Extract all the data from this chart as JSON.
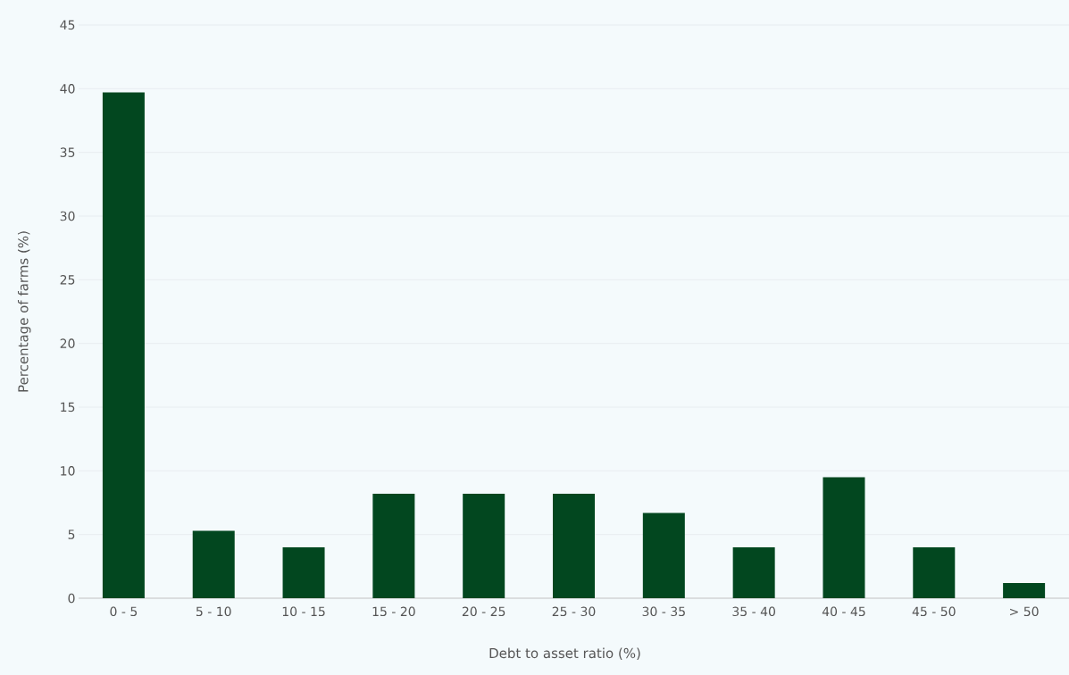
{
  "chart_data": {
    "type": "bar",
    "xlabel": "Debt to asset ratio (%)",
    "ylabel": "Percentage of farms (%)",
    "categories": [
      "0 - 5",
      "5 - 10",
      "10 - 15",
      "15 - 20",
      "20 - 25",
      "25 - 30",
      "30 - 35",
      "35 - 40",
      "40 - 45",
      "45 - 50",
      "> 50"
    ],
    "values": [
      39.7,
      5.3,
      4.0,
      8.2,
      8.2,
      8.2,
      6.7,
      4.0,
      9.5,
      4.0,
      1.2
    ],
    "color": "#02471f",
    "ylim": [
      0,
      45
    ],
    "yticks": [
      0,
      5,
      10,
      15,
      20,
      25,
      30,
      35,
      40,
      45
    ],
    "grid": "y"
  }
}
